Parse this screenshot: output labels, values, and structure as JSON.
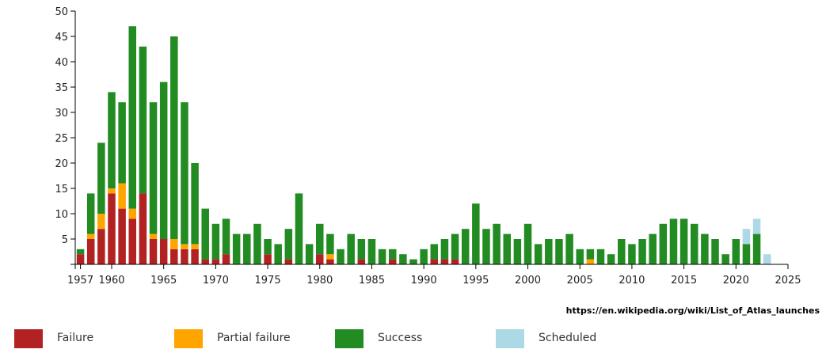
{
  "chart_data": {
    "type": "bar",
    "stacked": true,
    "xlabel": "",
    "ylabel": "",
    "ylim": [
      0,
      50
    ],
    "xlim": [
      1956.5,
      2025
    ],
    "y_ticks": [
      5,
      10,
      15,
      20,
      25,
      30,
      35,
      40,
      45,
      50
    ],
    "x_tick_labels": [
      "1957",
      "1960",
      "1965",
      "1970",
      "1975",
      "1980",
      "1985",
      "1990",
      "1995",
      "2000",
      "2005",
      "2010",
      "2015",
      "2020",
      "2025"
    ],
    "x_tick_values": [
      1957,
      1960,
      1965,
      1970,
      1975,
      1980,
      1985,
      1990,
      1995,
      2000,
      2005,
      2010,
      2015,
      2020,
      2025
    ],
    "grid": false,
    "legend_position": "bottom",
    "source_text": "https://en.wikipedia.org/wiki/List_of_Atlas_launches",
    "years": [
      1957,
      1958,
      1959,
      1960,
      1961,
      1962,
      1963,
      1964,
      1965,
      1966,
      1967,
      1968,
      1969,
      1970,
      1971,
      1972,
      1973,
      1974,
      1975,
      1976,
      1977,
      1978,
      1979,
      1980,
      1981,
      1982,
      1983,
      1984,
      1985,
      1986,
      1987,
      1988,
      1989,
      1990,
      1991,
      1992,
      1993,
      1994,
      1995,
      1996,
      1997,
      1998,
      1999,
      2000,
      2001,
      2002,
      2003,
      2004,
      2005,
      2006,
      2007,
      2008,
      2009,
      2010,
      2011,
      2012,
      2013,
      2014,
      2015,
      2016,
      2017,
      2018,
      2019,
      2020,
      2021,
      2022,
      2023
    ],
    "series": [
      {
        "name": "Failure",
        "color": "#b22222",
        "values": [
          2,
          5,
          7,
          14,
          11,
          9,
          14,
          5,
          5,
          3,
          3,
          3,
          1,
          1,
          2,
          0,
          0,
          0,
          2,
          0,
          1,
          0,
          0,
          2,
          1,
          0,
          0,
          1,
          0,
          0,
          1,
          0,
          0,
          0,
          1,
          1,
          1,
          0,
          0,
          0,
          0,
          0,
          0,
          0,
          0,
          0,
          0,
          0,
          0,
          0,
          0,
          0,
          0,
          0,
          0,
          0,
          0,
          0,
          0,
          0,
          0,
          0,
          0,
          0,
          0,
          0,
          0
        ]
      },
      {
        "name": "Partial failure",
        "color": "#ffa500",
        "values": [
          0,
          1,
          3,
          1,
          5,
          2,
          0,
          1,
          0,
          2,
          1,
          1,
          0,
          0,
          0,
          0,
          0,
          0,
          0,
          0,
          0,
          0,
          0,
          0,
          1,
          0,
          0,
          0,
          0,
          0,
          0,
          0,
          0,
          0,
          0,
          0,
          0,
          0,
          0,
          0,
          0,
          0,
          0,
          0,
          0,
          0,
          0,
          0,
          0,
          1,
          0,
          0,
          0,
          0,
          0,
          0,
          0,
          0,
          0,
          0,
          0,
          0,
          0,
          0,
          0,
          0,
          0
        ]
      },
      {
        "name": "Success",
        "color": "#228b22",
        "values": [
          1,
          8,
          14,
          19,
          16,
          36,
          29,
          26,
          31,
          40,
          28,
          16,
          10,
          7,
          7,
          6,
          6,
          8,
          3,
          4,
          6,
          14,
          4,
          6,
          4,
          3,
          6,
          4,
          5,
          3,
          2,
          2,
          1,
          3,
          3,
          4,
          5,
          7,
          12,
          7,
          8,
          6,
          5,
          8,
          4,
          5,
          5,
          6,
          3,
          2,
          3,
          2,
          5,
          4,
          5,
          6,
          8,
          9,
          9,
          8,
          6,
          5,
          2,
          5,
          4,
          6,
          0
        ]
      },
      {
        "name": "Scheduled",
        "color": "#add8e6",
        "values": [
          0,
          0,
          0,
          0,
          0,
          0,
          0,
          0,
          0,
          0,
          0,
          0,
          0,
          0,
          0,
          0,
          0,
          0,
          0,
          0,
          0,
          0,
          0,
          0,
          0,
          0,
          0,
          0,
          0,
          0,
          0,
          0,
          0,
          0,
          0,
          0,
          0,
          0,
          0,
          0,
          0,
          0,
          0,
          0,
          0,
          0,
          0,
          0,
          0,
          0,
          0,
          0,
          0,
          0,
          0,
          0,
          0,
          0,
          0,
          0,
          0,
          0,
          0,
          0,
          3,
          3,
          2
        ]
      }
    ]
  }
}
